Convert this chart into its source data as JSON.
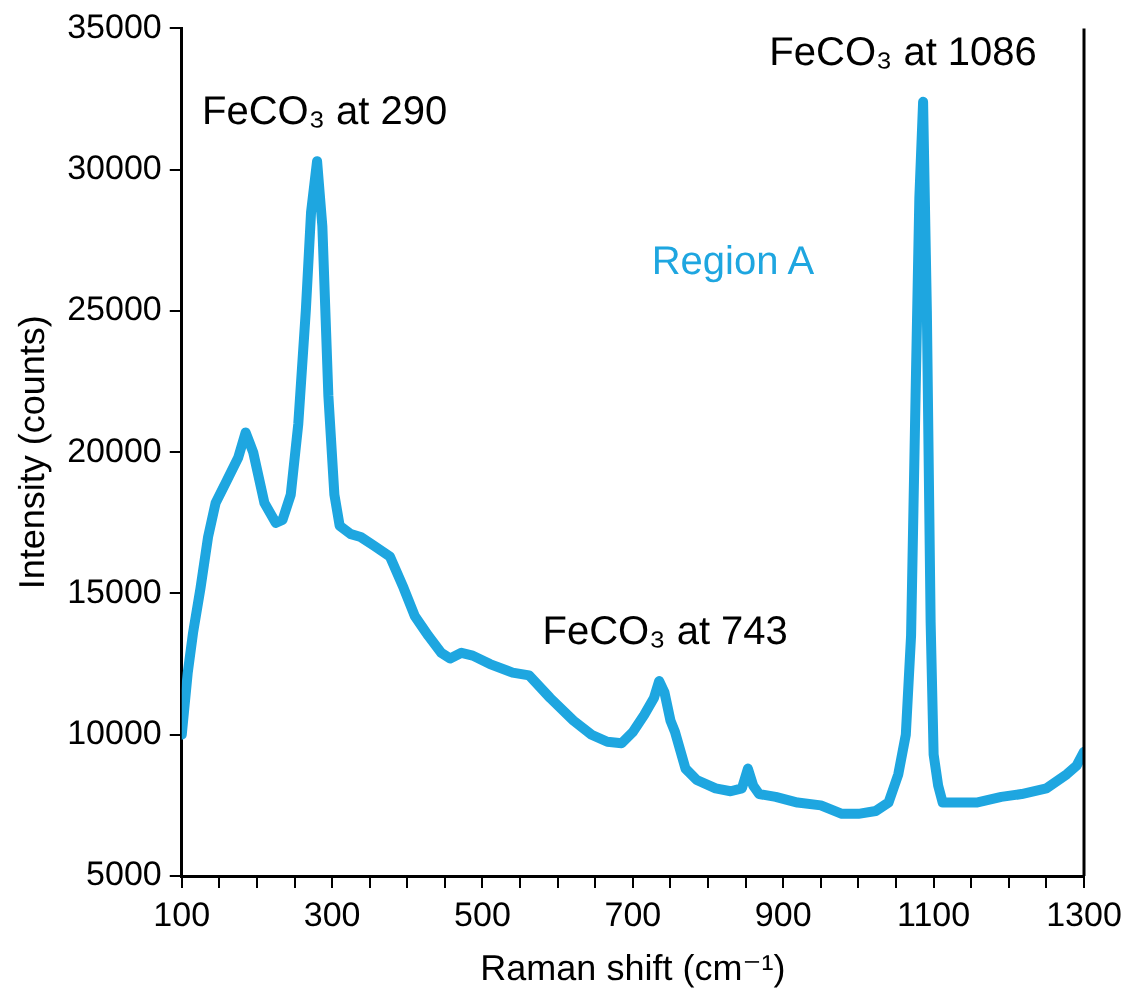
{
  "chart_data": {
    "type": "line",
    "xlabel": "Raman shift (cm⁻¹)",
    "ylabel": "Intensity (counts)",
    "xlim": [
      100,
      1300
    ],
    "ylim": [
      5000,
      35000
    ],
    "xticks": [
      100,
      {
        "value": 150,
        "label": null
      },
      {
        "value": 250,
        "label": null
      },
      300,
      {
        "value": 350,
        "label": null
      },
      {
        "value": 400,
        "label": null
      },
      {
        "value": 450,
        "label": null
      },
      500,
      {
        "value": 550,
        "label": null
      },
      {
        "value": 600,
        "label": null
      },
      {
        "value": 650,
        "label": null
      },
      700,
      {
        "value": 750,
        "label": null
      },
      {
        "value": 800,
        "label": null
      },
      {
        "value": 850,
        "label": null
      },
      900,
      {
        "value": 950,
        "label": null
      },
      {
        "value": 1000,
        "label": null
      },
      {
        "value": 1050,
        "label": null
      },
      1100,
      {
        "value": 1150,
        "label": null
      },
      {
        "value": 1200,
        "label": null
      },
      {
        "value": 1250,
        "label": null
      },
      1300,
      {
        "value": 200,
        "label": null
      }
    ],
    "yticks": [
      5000,
      10000,
      15000,
      20000,
      25000,
      30000,
      35000
    ],
    "grid": false,
    "legend": false,
    "marker": "none",
    "line_style": "solid",
    "series": [
      {
        "color": "#1ea6e0",
        "x": [
          100,
          108,
          115,
          125,
          135,
          145,
          160,
          175,
          185,
          195,
          210,
          225,
          234,
          245,
          255,
          265,
          272,
          280,
          287,
          295,
          303,
          310,
          325,
          338,
          355,
          377,
          395,
          410,
          428,
          445,
          457,
          472,
          487,
          510,
          540,
          562,
          590,
          621,
          645,
          666,
          685,
          700,
          715,
          728,
          735,
          742,
          750,
          756,
          770,
          785,
          810,
          830,
          845,
          853,
          860,
          868,
          890,
          919,
          950,
          978,
          1000,
          1023,
          1040,
          1053,
          1063,
          1070,
          1076,
          1081,
          1086,
          1091,
          1096,
          1100,
          1106,
          1112,
          1130,
          1157,
          1190,
          1217,
          1250,
          1277,
          1290,
          1300
        ],
        "values": [
          10000,
          12200,
          13600,
          15200,
          17000,
          18200,
          19000,
          19800,
          20700,
          20000,
          18200,
          17500,
          17600,
          18500,
          21000,
          25000,
          28500,
          30300,
          28000,
          22000,
          18500,
          17400,
          17100,
          17000,
          16700,
          16300,
          15200,
          14200,
          13500,
          12900,
          12700,
          12900,
          12800,
          12500,
          12200,
          12100,
          11300,
          10500,
          10000,
          9750,
          9700,
          10100,
          10700,
          11300,
          11900,
          11500,
          10500,
          10100,
          8800,
          8400,
          8100,
          8000,
          8100,
          8800,
          8200,
          7900,
          7800,
          7600,
          7500,
          7200,
          7200,
          7300,
          7600,
          8600,
          10000,
          13500,
          22000,
          29000,
          32400,
          25000,
          14000,
          9300,
          8200,
          7600,
          7600,
          7600,
          7800,
          7900,
          8100,
          8600,
          8900,
          9400
        ]
      }
    ],
    "annotations": [
      {
        "text": "FeCO₃ at 290",
        "x": 290,
        "y": 30300
      },
      {
        "text": "FeCO₃ at 743",
        "x": 743,
        "y": 11900
      },
      {
        "text": "FeCO₃ at 1086",
        "x": 1086,
        "y": 32400
      },
      "Region A"
    ]
  }
}
